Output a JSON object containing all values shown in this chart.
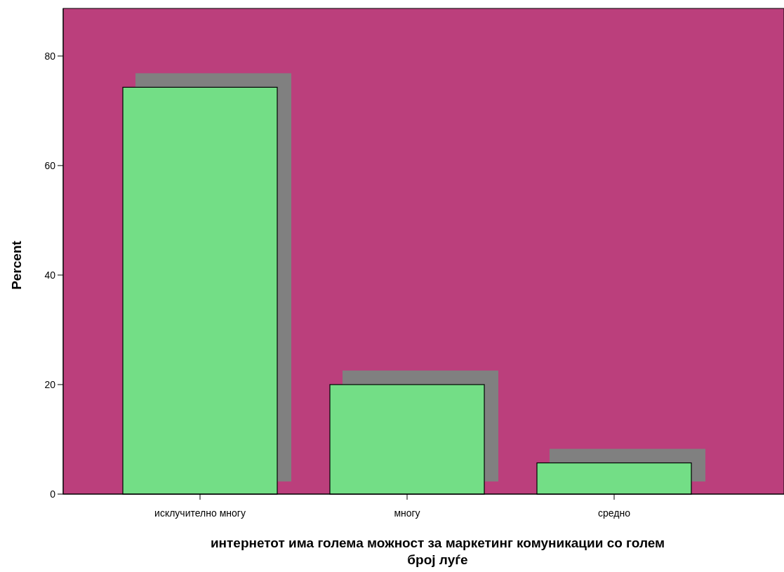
{
  "chart_data": {
    "type": "bar",
    "xlabel": "интернетот има голема можност за маркетинг комуникации со голем број луѓе",
    "ylabel": "Percent",
    "categories": [
      "исклучително многу",
      "многу",
      "средно"
    ],
    "values": [
      74.3,
      20.0,
      5.7
    ],
    "color": "#73de86",
    "ylim": [
      0,
      88.7
    ],
    "yticks": [
      0,
      20,
      40,
      60,
      80
    ]
  }
}
